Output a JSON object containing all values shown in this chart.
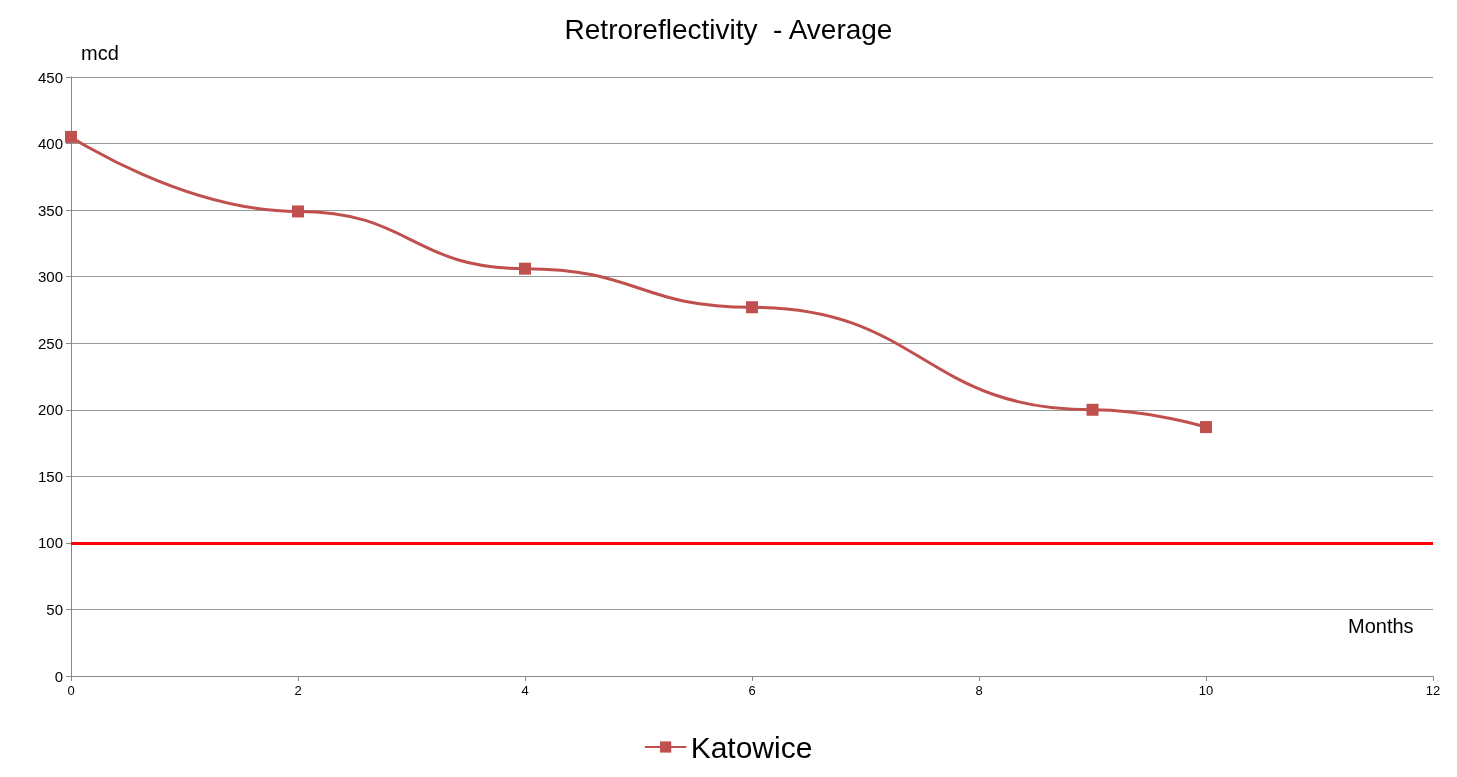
{
  "chart_data": {
    "type": "line",
    "title": "Retroreflectivity  - Average",
    "ylabel": "mcd",
    "xlabel": "Months",
    "x": [
      0,
      2,
      4,
      6,
      9,
      10
    ],
    "series": [
      {
        "name": "Katowice",
        "color": "#c0504d",
        "values": [
          405,
          349,
          306,
          277,
          200,
          187
        ]
      }
    ],
    "xlim": [
      0,
      12
    ],
    "xticks": [
      0,
      2,
      4,
      6,
      8,
      10,
      12
    ],
    "ylim": [
      0,
      450
    ],
    "yticks": [
      0,
      50,
      100,
      150,
      200,
      250,
      300,
      350,
      400,
      450
    ],
    "ref_lines": [
      {
        "axis": "y",
        "value": 100,
        "color": "#ff0000"
      }
    ],
    "grid": "y",
    "legend": "bottom",
    "marker": "square",
    "line_style": "solid"
  }
}
